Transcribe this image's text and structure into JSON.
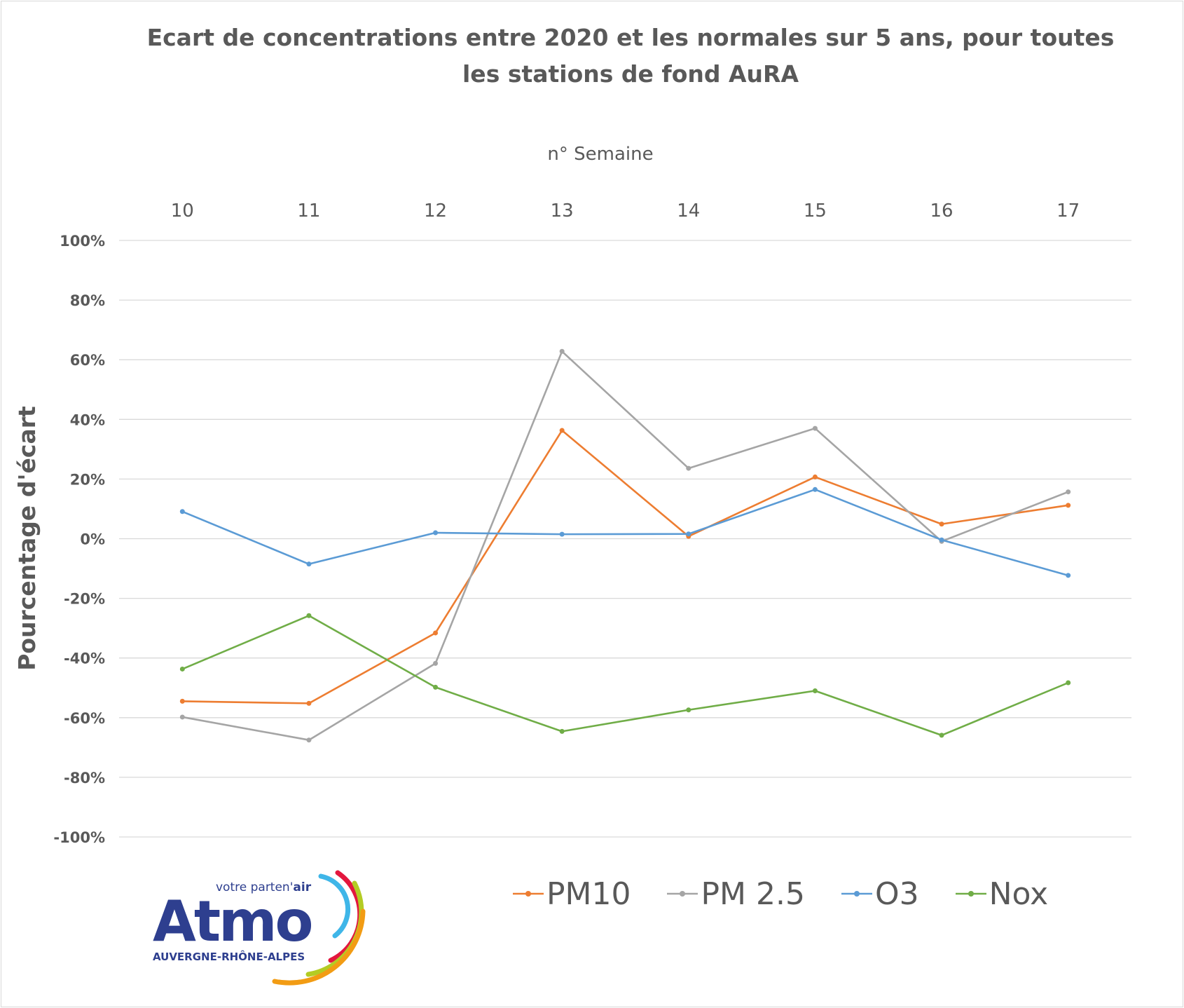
{
  "chart_data": {
    "type": "line",
    "title": "Ecart de concentrations entre 2020 et les normales sur 5 ans, pour toutes les stations de fond AuRA",
    "xlabel": "n° Semaine",
    "ylabel": "Pourcentage d'écart",
    "categories": [
      "10",
      "11",
      "12",
      "13",
      "14",
      "15",
      "16",
      "17"
    ],
    "ylim": [
      -100,
      100
    ],
    "yticks": [
      "100%",
      "80%",
      "60%",
      "40%",
      "20%",
      "0%",
      "-20%",
      "-40%",
      "-60%",
      "-80%",
      "-100%"
    ],
    "grid": true,
    "legend_position": "bottom",
    "series": [
      {
        "name": "PM10",
        "color": "#ed7d31",
        "values": [
          -54.5,
          -55.2,
          -31.6,
          36.3,
          0.8,
          20.7,
          4.9,
          11.2
        ]
      },
      {
        "name": "PM 2.5",
        "color": "#a5a5a5",
        "values": [
          -59.8,
          -67.5,
          -41.8,
          62.8,
          23.6,
          37.0,
          -0.9,
          15.7
        ]
      },
      {
        "name": "O3",
        "color": "#5b9bd5",
        "values": [
          9.1,
          -8.5,
          2.0,
          1.5,
          1.6,
          16.5,
          -0.4,
          -12.3
        ]
      },
      {
        "name": "Nox",
        "color": "#70ad47",
        "values": [
          -43.7,
          -25.8,
          -49.8,
          -64.6,
          -57.4,
          -51.0,
          -65.9,
          -48.3
        ]
      }
    ]
  },
  "logo": {
    "name": "Atmo",
    "tagline_start": "votre parten'",
    "tagline_end": "air",
    "region": "AUVERGNE-RHÔNE-ALPES"
  }
}
